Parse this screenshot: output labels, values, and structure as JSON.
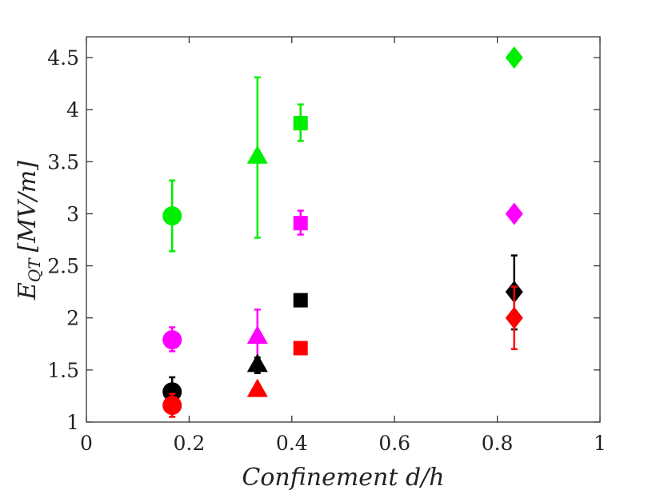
{
  "chart_data": {
    "type": "scatter",
    "title": "",
    "xlabel": "Confinement d/h",
    "ylabel": "E_QT [MV/m]",
    "ylabel_main": "E",
    "ylabel_sub": "QT",
    "ylabel_units": "[MV/m]",
    "xlim": [
      0,
      1
    ],
    "ylim": [
      1,
      4.7
    ],
    "xticks": [
      0,
      0.2,
      0.4,
      0.6,
      0.8,
      1
    ],
    "xtick_labels": [
      "0",
      "0.2",
      "0.4",
      "0.6",
      "0.8",
      "1"
    ],
    "yticks": [
      1,
      1.5,
      2,
      2.5,
      3,
      3.5,
      4,
      4.5
    ],
    "ytick_labels": [
      "1",
      "1.5",
      "2",
      "2.5",
      "3",
      "3.5",
      "4",
      "4.5"
    ],
    "grid": false,
    "series": [
      {
        "name": "green",
        "color": "#00ee00",
        "points": [
          {
            "x": 0.167,
            "y": 2.98,
            "marker": "circle",
            "err_low": 2.64,
            "err_high": 3.32
          },
          {
            "x": 0.333,
            "y": 3.55,
            "marker": "triangle",
            "err_low": 2.77,
            "err_high": 4.31
          },
          {
            "x": 0.417,
            "y": 3.87,
            "marker": "square",
            "err_low": 3.7,
            "err_high": 4.05
          },
          {
            "x": 0.833,
            "y": 4.5,
            "marker": "diamond"
          }
        ]
      },
      {
        "name": "magenta",
        "color": "#ff00ff",
        "points": [
          {
            "x": 0.167,
            "y": 1.79,
            "marker": "circle",
            "err_low": 1.68,
            "err_high": 1.91
          },
          {
            "x": 0.333,
            "y": 1.82,
            "marker": "triangle",
            "err_low": 1.56,
            "err_high": 2.08
          },
          {
            "x": 0.417,
            "y": 2.91,
            "marker": "square",
            "err_low": 2.8,
            "err_high": 3.03
          },
          {
            "x": 0.833,
            "y": 3.0,
            "marker": "diamond"
          }
        ]
      },
      {
        "name": "black",
        "color": "#000000",
        "points": [
          {
            "x": 0.167,
            "y": 1.29,
            "marker": "circle",
            "err_low": 1.15,
            "err_high": 1.43
          },
          {
            "x": 0.333,
            "y": 1.55,
            "marker": "triangle",
            "err_low": 1.47,
            "err_high": 1.62
          },
          {
            "x": 0.417,
            "y": 2.17,
            "marker": "square"
          },
          {
            "x": 0.833,
            "y": 2.25,
            "marker": "diamond",
            "err_low": 1.89,
            "err_high": 2.6
          }
        ]
      },
      {
        "name": "red",
        "color": "#ff0000",
        "points": [
          {
            "x": 0.167,
            "y": 1.16,
            "marker": "circle",
            "err_low": 1.05,
            "err_high": 1.27
          },
          {
            "x": 0.333,
            "y": 1.31,
            "marker": "triangle"
          },
          {
            "x": 0.417,
            "y": 1.71,
            "marker": "square"
          },
          {
            "x": 0.833,
            "y": 2.0,
            "marker": "diamond",
            "err_low": 1.7,
            "err_high": 2.3
          }
        ]
      }
    ]
  }
}
